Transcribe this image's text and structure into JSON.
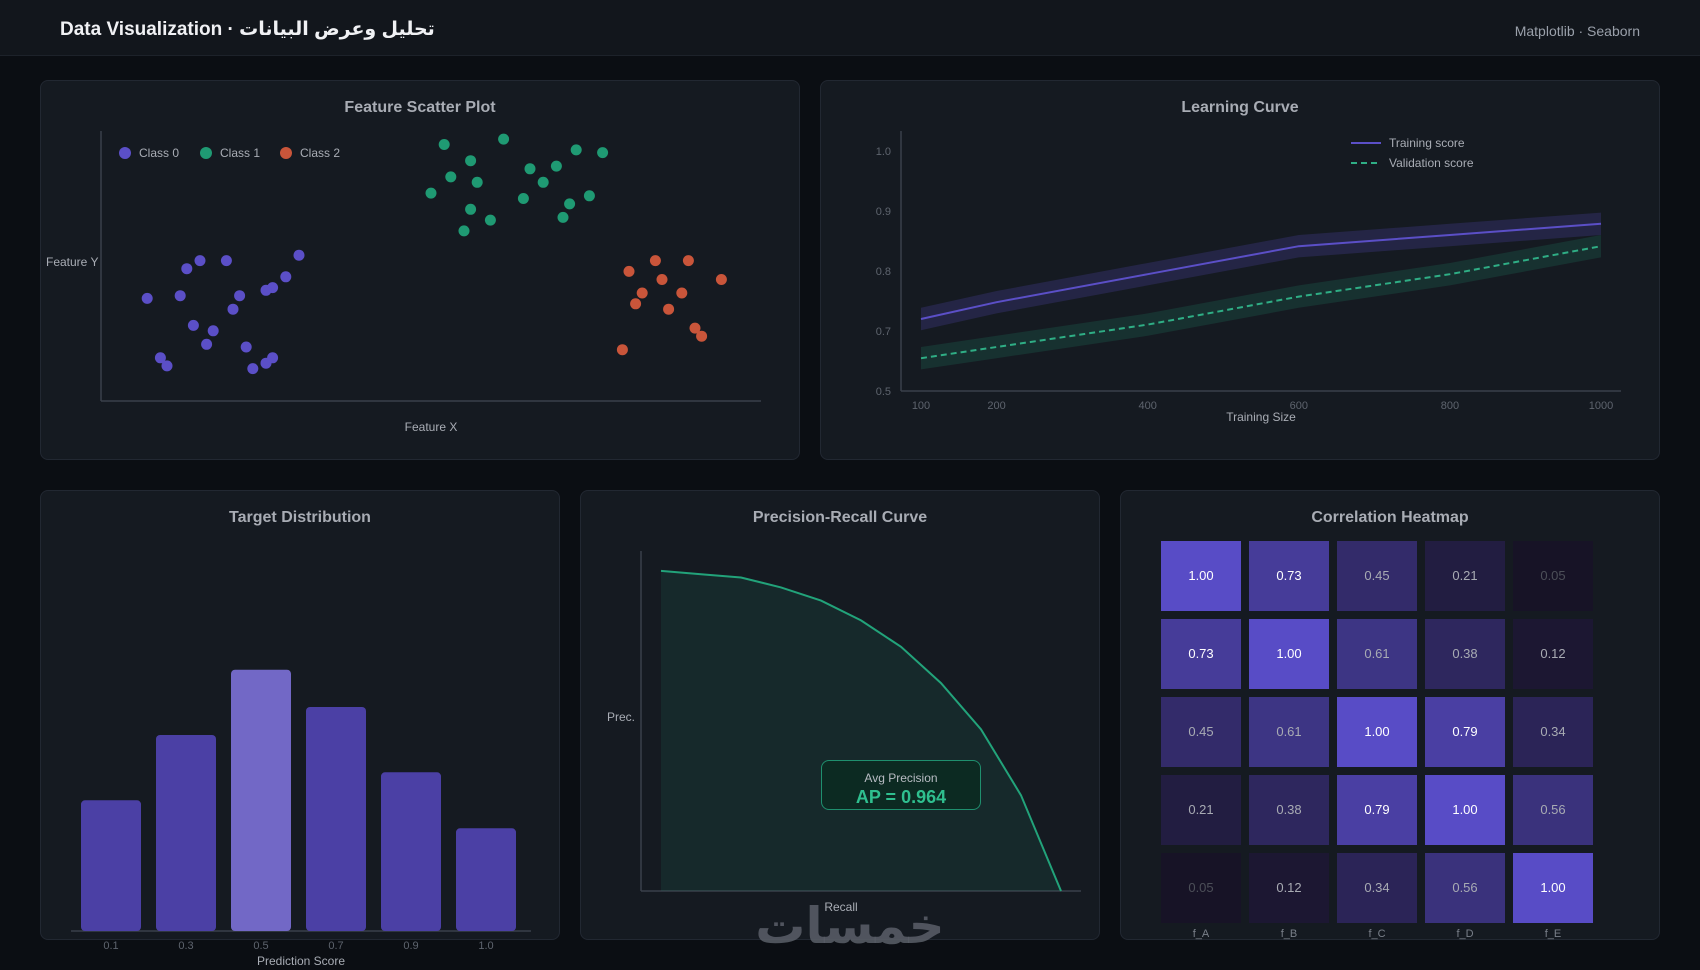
{
  "header": {
    "title": "Data Visualization · تحليل وعرض البيانات",
    "libraries": "Matplotlib · Seaborn"
  },
  "colors": {
    "class0": "#5b4fc7",
    "class1": "#1f9a73",
    "class2": "#c9553a",
    "train": "#5b4fc7",
    "valid": "#2fae85"
  },
  "scatter": {
    "title": "Feature Scatter Plot"
  },
  "learning": {
    "title": "Learning Curve"
  },
  "distribution": {
    "title": "Target Distribution"
  },
  "pr": {
    "title": "Precision-Recall Curve",
    "ap_label": "Avg Precision",
    "ap_value": "AP = 0.964"
  },
  "heatmap": {
    "title": "Correlation Heatmap"
  },
  "watermark": {
    "text": "خمسات"
  },
  "chart_data": [
    {
      "type": "scatter",
      "title": "Feature Scatter Plot",
      "xlabel": "Feature X",
      "ylabel": "Feature Y",
      "xlim": [
        0,
        100
      ],
      "ylim": [
        0,
        100
      ],
      "legend": [
        "Class 0",
        "Class 1",
        "Class 2"
      ],
      "series": [
        {
          "name": "Class 0",
          "points": [
            [
              10,
              13
            ],
            [
              16,
              21
            ],
            [
              22,
              20
            ],
            [
              17,
              26
            ],
            [
              12,
              39
            ],
            [
              14,
              28
            ],
            [
              13,
              49
            ],
            [
              15,
              52
            ],
            [
              9,
              16
            ],
            [
              20,
              34
            ],
            [
              7,
              38
            ],
            [
              23,
              12
            ],
            [
              25,
              14
            ],
            [
              26,
              16
            ],
            [
              21,
              39
            ],
            [
              19,
              52
            ],
            [
              26,
              42
            ],
            [
              28,
              46
            ],
            [
              25,
              41
            ],
            [
              30,
              54
            ]
          ]
        },
        {
          "name": "Class 1",
          "points": [
            [
              52,
              95
            ],
            [
              56,
              89
            ],
            [
              61,
              97
            ],
            [
              65,
              86
            ],
            [
              57,
              81
            ],
            [
              53,
              83
            ],
            [
              50,
              77
            ],
            [
              56,
              71
            ],
            [
              59,
              67
            ],
            [
              64,
              75
            ],
            [
              67,
              81
            ],
            [
              69,
              87
            ],
            [
              72,
              93
            ],
            [
              74,
              76
            ],
            [
              70,
              68
            ],
            [
              71,
              73
            ],
            [
              76,
              92
            ],
            [
              55,
              63
            ]
          ]
        },
        {
          "name": "Class 2",
          "points": [
            [
              80,
              48
            ],
            [
              84,
              52
            ],
            [
              89,
              52
            ],
            [
              85,
              45
            ],
            [
              88,
              40
            ],
            [
              82,
              40
            ],
            [
              81,
              36
            ],
            [
              86,
              34
            ],
            [
              90,
              27
            ],
            [
              91,
              24
            ],
            [
              79,
              19
            ],
            [
              94,
              45
            ]
          ]
        }
      ]
    },
    {
      "type": "line",
      "title": "Learning Curve",
      "xlabel": "Training Size",
      "ylabel": "",
      "x": [
        100,
        200,
        400,
        600,
        800,
        1000
      ],
      "xticks": [
        "100",
        "200",
        "400",
        "600",
        "800",
        "1000"
      ],
      "yticks": [
        "1.0",
        "0.9",
        "0.8",
        "0.7",
        "0.5"
      ],
      "series": [
        {
          "name": "Training score",
          "values": [
            0.7,
            0.73,
            0.78,
            0.83,
            0.85,
            0.87
          ],
          "band": 0.02
        },
        {
          "name": "Validation score",
          "values": [
            0.63,
            0.65,
            0.69,
            0.74,
            0.78,
            0.83
          ],
          "band": 0.02
        }
      ]
    },
    {
      "type": "bar",
      "title": "Target Distribution",
      "xlabel": "Prediction Score",
      "ylabel": "",
      "categories": [
        "0.1",
        "0.3",
        "0.5",
        "0.7",
        "0.9",
        "1.0"
      ],
      "values": [
        140,
        210,
        280,
        240,
        170,
        110
      ],
      "highlight": "0.5",
      "ylim": [
        0,
        300
      ]
    },
    {
      "type": "area",
      "title": "Precision-Recall Curve",
      "xlabel": "Recall",
      "ylabel": "Prec.",
      "xlim": [
        0,
        1
      ],
      "ylim": [
        0,
        1
      ],
      "x": [
        0.0,
        0.1,
        0.2,
        0.3,
        0.4,
        0.5,
        0.6,
        0.7,
        0.8,
        0.9,
        1.0
      ],
      "values": [
        0.97,
        0.96,
        0.95,
        0.92,
        0.88,
        0.82,
        0.74,
        0.63,
        0.49,
        0.29,
        0.0
      ],
      "annotation": "AP = 0.964"
    },
    {
      "type": "heatmap",
      "title": "Correlation Heatmap",
      "labels": [
        "f_A",
        "f_B",
        "f_C",
        "f_D",
        "f_E"
      ],
      "matrix": [
        [
          1.0,
          0.73,
          0.45,
          0.21,
          0.05
        ],
        [
          0.73,
          1.0,
          0.61,
          0.38,
          0.12
        ],
        [
          0.45,
          0.61,
          1.0,
          0.79,
          0.34
        ],
        [
          0.21,
          0.38,
          0.79,
          1.0,
          0.56
        ],
        [
          0.05,
          0.12,
          0.34,
          0.56,
          1.0
        ]
      ]
    }
  ]
}
